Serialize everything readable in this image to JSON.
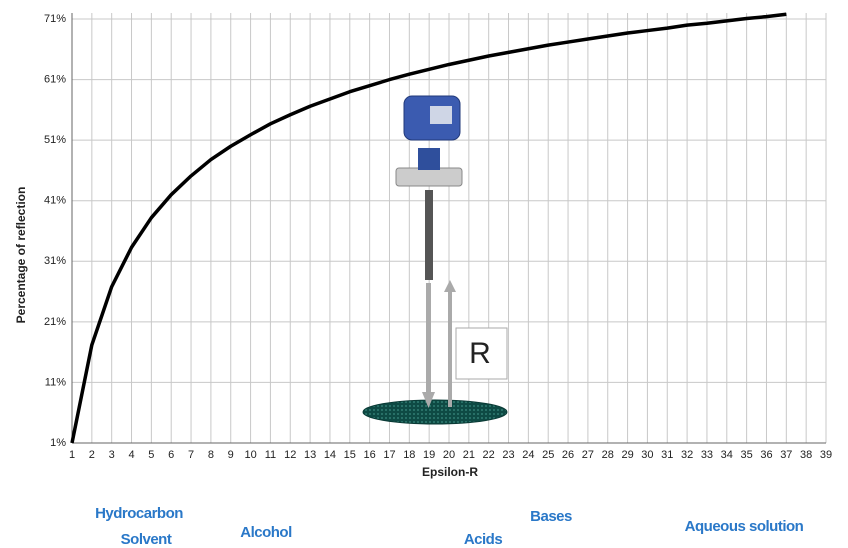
{
  "chart_data": {
    "type": "line",
    "x_label": "Epsilon-R",
    "y_label": "Percentage of reflection",
    "x": [
      1,
      2,
      3,
      4,
      5,
      6,
      7,
      8,
      9,
      10,
      11,
      12,
      13,
      14,
      15,
      16,
      17,
      18,
      19,
      20,
      21,
      22,
      23,
      24,
      25,
      26,
      27,
      28,
      29,
      30,
      31,
      32,
      33,
      34,
      35,
      36,
      37
    ],
    "values": [
      1,
      17.2,
      26.8,
      33.3,
      38.2,
      42.0,
      45.1,
      47.8,
      50.0,
      51.9,
      53.7,
      55.2,
      56.6,
      57.8,
      59.0,
      60.0,
      61.0,
      61.9,
      62.7,
      63.5,
      64.2,
      64.9,
      65.5,
      66.1,
      66.7,
      67.2,
      67.7,
      68.2,
      68.7,
      69.1,
      69.5,
      70.0,
      70.3,
      70.7,
      71.1,
      71.4,
      71.8
    ],
    "color": "#000000",
    "xlim": [
      1,
      39
    ],
    "ylim": [
      1,
      72
    ],
    "xticks": [
      1,
      2,
      3,
      4,
      5,
      6,
      7,
      8,
      9,
      10,
      11,
      12,
      13,
      14,
      15,
      16,
      17,
      18,
      19,
      20,
      21,
      22,
      23,
      24,
      25,
      26,
      27,
      28,
      29,
      30,
      31,
      32,
      33,
      34,
      35,
      36,
      37,
      38,
      39
    ],
    "yticks": [
      {
        "value": 1,
        "label": "1%"
      },
      {
        "value": 11,
        "label": "11%"
      },
      {
        "value": 21,
        "label": "21%"
      },
      {
        "value": 31,
        "label": "31%"
      },
      {
        "value": 41,
        "label": "41%"
      },
      {
        "value": 51,
        "label": "51%"
      },
      {
        "value": 61,
        "label": "61%"
      },
      {
        "value": 71,
        "label": "71%"
      }
    ],
    "grid": true,
    "annotations": [
      "Hydrocarbon",
      "Solvent",
      "Alcohol",
      "Acids",
      "Bases",
      "Aqueous solution",
      "R"
    ]
  }
}
